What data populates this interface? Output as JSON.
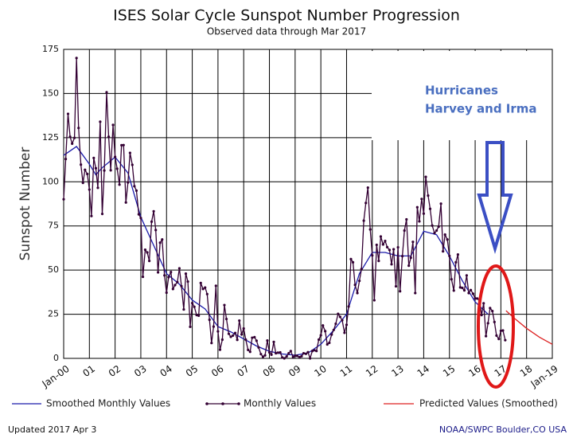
{
  "chart_data": {
    "type": "line",
    "title": "ISES Solar Cycle Sunspot Number Progression",
    "subtitle": "Observed data through Mar 2017",
    "y_label": "Sunspot Number",
    "annotation": [
      "Hurricanes",
      "Harvey and Irma"
    ],
    "xlim": [
      2000,
      2019
    ],
    "xticks": [
      {
        "value": 2000,
        "label": "Jan-00"
      },
      {
        "value": 2001,
        "label": "01"
      },
      {
        "value": 2002,
        "label": "02"
      },
      {
        "value": 2003,
        "label": "03"
      },
      {
        "value": 2004,
        "label": "04"
      },
      {
        "value": 2005,
        "label": "05"
      },
      {
        "value": 2006,
        "label": "06"
      },
      {
        "value": 2007,
        "label": "07"
      },
      {
        "value": 2008,
        "label": "08"
      },
      {
        "value": 2009,
        "label": "09"
      },
      {
        "value": 2010,
        "label": "10"
      },
      {
        "value": 2011,
        "label": "11"
      },
      {
        "value": 2012,
        "label": "12"
      },
      {
        "value": 2013,
        "label": "13"
      },
      {
        "value": 2014,
        "label": "14"
      },
      {
        "value": 2015,
        "label": "15"
      },
      {
        "value": 2016,
        "label": "16"
      },
      {
        "value": 2017,
        "label": "17"
      },
      {
        "value": 2018,
        "label": "18"
      },
      {
        "value": 2019,
        "label": "Jan-19"
      }
    ],
    "ylim": [
      0,
      175
    ],
    "yticks": [
      0,
      25,
      50,
      75,
      100,
      125,
      150,
      175
    ],
    "grid": true,
    "series": [
      {
        "name": "Smoothed Monthly Values",
        "color": "#1a1aaa",
        "markers": false,
        "x": [
          2000,
          2000.5,
          2001,
          2001.25,
          2001.5,
          2002,
          2002.5,
          2003,
          2003.5,
          2004,
          2004.5,
          2005,
          2005.5,
          2006,
          2006.5,
          2007,
          2007.5,
          2008,
          2008.5,
          2009,
          2009.5,
          2010,
          2010.5,
          2011,
          2011.5,
          2012,
          2012.5,
          2013,
          2013.5,
          2014,
          2014.5,
          2015,
          2015.5,
          2016,
          2016.5
        ],
        "values": [
          115,
          120,
          110,
          104,
          108,
          114,
          105,
          80,
          64,
          48,
          42,
          33,
          28,
          18,
          15,
          11,
          7,
          4,
          2.5,
          1.8,
          3,
          8,
          16,
          25,
          48,
          60,
          60,
          58,
          58,
          72,
          70,
          58,
          44,
          32,
          25
        ]
      },
      {
        "name": "Monthly Values",
        "color": "#330033",
        "markers": true,
        "x": [
          2000,
          2000.08,
          2000.17,
          2000.25,
          2000.33,
          2000.42,
          2000.5,
          2000.58,
          2000.67,
          2000.75,
          2000.83,
          2000.92,
          2001,
          2001.08,
          2001.17,
          2001.25,
          2001.33,
          2001.42,
          2001.5,
          2001.58,
          2001.67,
          2001.75,
          2001.83,
          2001.92,
          2002,
          2002.08,
          2002.17,
          2002.25,
          2002.33,
          2002.42,
          2002.5,
          2002.58,
          2002.67,
          2002.75,
          2002.83,
          2002.92,
          2003,
          2003.08,
          2003.17,
          2003.25,
          2003.33,
          2003.42,
          2003.5,
          2003.58,
          2003.67,
          2003.75,
          2003.83,
          2003.92,
          2004,
          2004.08,
          2004.17,
          2004.25,
          2004.33,
          2004.42,
          2004.5,
          2004.58,
          2004.67,
          2004.75,
          2004.83,
          2004.92,
          2005,
          2005.08,
          2005.17,
          2005.25,
          2005.33,
          2005.42,
          2005.5,
          2005.58,
          2005.67,
          2005.75,
          2005.83,
          2005.92,
          2006,
          2006.08,
          2006.17,
          2006.25,
          2006.33,
          2006.42,
          2006.5,
          2006.58,
          2006.67,
          2006.75,
          2006.83,
          2006.92,
          2007,
          2007.08,
          2007.17,
          2007.25,
          2007.33,
          2007.42,
          2007.5,
          2007.58,
          2007.67,
          2007.75,
          2007.83,
          2007.92,
          2008,
          2008.08,
          2008.17,
          2008.25,
          2008.33,
          2008.42,
          2008.5,
          2008.58,
          2008.67,
          2008.75,
          2008.83,
          2008.92,
          2009,
          2009.08,
          2009.17,
          2009.25,
          2009.33,
          2009.42,
          2009.5,
          2009.58,
          2009.67,
          2009.75,
          2009.83,
          2009.92,
          2010,
          2010.08,
          2010.17,
          2010.25,
          2010.33,
          2010.42,
          2010.5,
          2010.58,
          2010.67,
          2010.75,
          2010.83,
          2010.92,
          2011,
          2011.08,
          2011.17,
          2011.25,
          2011.33,
          2011.42,
          2011.5,
          2011.58,
          2011.67,
          2011.75,
          2011.83,
          2011.92,
          2012,
          2012.08,
          2012.17,
          2012.25,
          2012.33,
          2012.42,
          2012.5,
          2012.58,
          2012.67,
          2012.75,
          2012.83,
          2012.92,
          2013,
          2013.08,
          2013.17,
          2013.25,
          2013.33,
          2013.42,
          2013.5,
          2013.58,
          2013.67,
          2013.75,
          2013.83,
          2013.92,
          2014,
          2014.08,
          2014.17,
          2014.25,
          2014.33,
          2014.42,
          2014.5,
          2014.58,
          2014.67,
          2014.75,
          2014.83,
          2014.92,
          2015,
          2015.08,
          2015.17,
          2015.25,
          2015.33,
          2015.42,
          2015.5,
          2015.58,
          2015.67,
          2015.75,
          2015.83,
          2015.92,
          2016,
          2016.08,
          2016.17,
          2016.25,
          2016.33,
          2016.42,
          2016.5,
          2016.58,
          2016.67,
          2016.75,
          2016.83,
          2016.92,
          2017,
          2017.08,
          2017.17
        ],
        "values": [
          90.1,
          112.9,
          138.5,
          125.5,
          121.6,
          124.9,
          170.1,
          130.5,
          109.7,
          99.4,
          106.8,
          104.4,
          95.6,
          80.6,
          113.5,
          107.7,
          96.6,
          134.0,
          81.8,
          106.4,
          150.7,
          125.5,
          106.5,
          132.2,
          114.1,
          107.4,
          98.4,
          120.7,
          120.8,
          88.3,
          99.6,
          116.4,
          109.6,
          97.5,
          95.0,
          81.6,
          79.5,
          46.2,
          61.5,
          60.0,
          55.2,
          77.4,
          83.3,
          72.7,
          48.7,
          65.5,
          67.3,
          47.0,
          37.2,
          46.0,
          48.9,
          39.3,
          41.5,
          43.2,
          51.0,
          40.9,
          27.7,
          48.0,
          43.5,
          17.9,
          31.3,
          29.2,
          24.5,
          24.2,
          42.7,
          39.3,
          40.1,
          36.4,
          21.9,
          8.7,
          18.0,
          41.1,
          15.3,
          4.9,
          10.6,
          30.2,
          22.3,
          13.9,
          12.2,
          12.9,
          14.4,
          10.5,
          21.4,
          13.6,
          16.9,
          10.6,
          4.8,
          3.7,
          11.7,
          12.0,
          10.0,
          6.2,
          2.4,
          0.9,
          1.7,
          10.1,
          3.4,
          2.1,
          9.3,
          2.9,
          3.2,
          3.4,
          0.5,
          0.0,
          1.1,
          2.9,
          4.1,
          0.8,
          1.5,
          1.4,
          0.7,
          1.2,
          2.9,
          2.6,
          3.5,
          0.0,
          4.2,
          4.6,
          4.2,
          10.6,
          13.1,
          18.6,
          15.4,
          7.9,
          8.8,
          13.5,
          16.1,
          19.6,
          25.2,
          23.5,
          21.6,
          14.5,
          19.0,
          29.4,
          56.2,
          54.4,
          41.6,
          37.0,
          43.9,
          50.6,
          78.0,
          88.0,
          96.7,
          73.0,
          58.3,
          32.9,
          64.3,
          55.2,
          69.0,
          64.5,
          66.5,
          63.0,
          61.4,
          53.3,
          61.8,
          40.8,
          62.9,
          38.0,
          57.9,
          72.4,
          78.7,
          52.5,
          57.0,
          66.0,
          37.0,
          85.6,
          77.6,
          90.3,
          82.0,
          102.8,
          92.2,
          84.7,
          75.2,
          71.0,
          72.4,
          74.6,
          87.6,
          60.6,
          70.1,
          67.3,
          58.0,
          44.8,
          38.4,
          54.4,
          58.8,
          40.2,
          39.9,
          38.5,
          47.0,
          37.0,
          38.7,
          36.6,
          34.0,
          33.9,
          32.8,
          24.5,
          31.2,
          12.6,
          19.9,
          28.5,
          26.8,
          20.6,
          12.9,
          11.0,
          15.6,
          15.8,
          10.3
        ]
      },
      {
        "name": "Predicted Values (Smoothed)",
        "color": "#dd2222",
        "markers": false,
        "x": [
          2017.2,
          2017.5,
          2018,
          2018.5,
          2019
        ],
        "values": [
          27,
          23,
          17,
          12,
          8
        ]
      }
    ]
  },
  "footer": {
    "updated": "Updated 2017 Apr  3",
    "credit": "NOAA/SWPC Boulder,CO USA"
  }
}
